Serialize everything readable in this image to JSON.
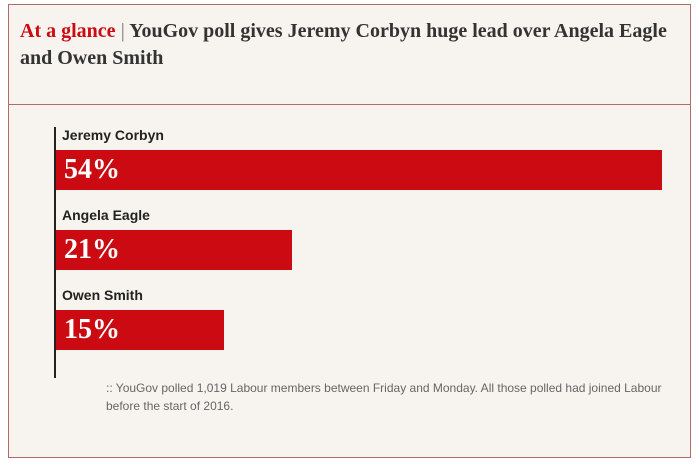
{
  "header": {
    "kicker": "At a glance",
    "separator": "|",
    "title": "YouGov poll gives Jeremy Corbyn huge lead over Angela Eagle and Owen Smith"
  },
  "chart_data": {
    "type": "bar",
    "orientation": "horizontal",
    "categories": [
      "Jeremy Corbyn",
      "Angela Eagle",
      "Owen Smith"
    ],
    "values": [
      54,
      21,
      15
    ],
    "value_labels": [
      "54%",
      "21%",
      "15%"
    ],
    "unit": "%",
    "bar_color": "#cc0a11",
    "xlim": [
      0,
      54
    ],
    "grid": false,
    "legend": "none",
    "title": "YouGov poll gives Jeremy Corbyn huge lead over Angela Eagle and Owen Smith"
  },
  "footnote": ":: YouGov polled 1,019 Labour members between Friday and Monday. All those polled had joined Labour before the start of 2016.",
  "colors": {
    "accent": "#cc0a11",
    "background": "#f7f4ef",
    "frame_border": "#b06a6a"
  }
}
